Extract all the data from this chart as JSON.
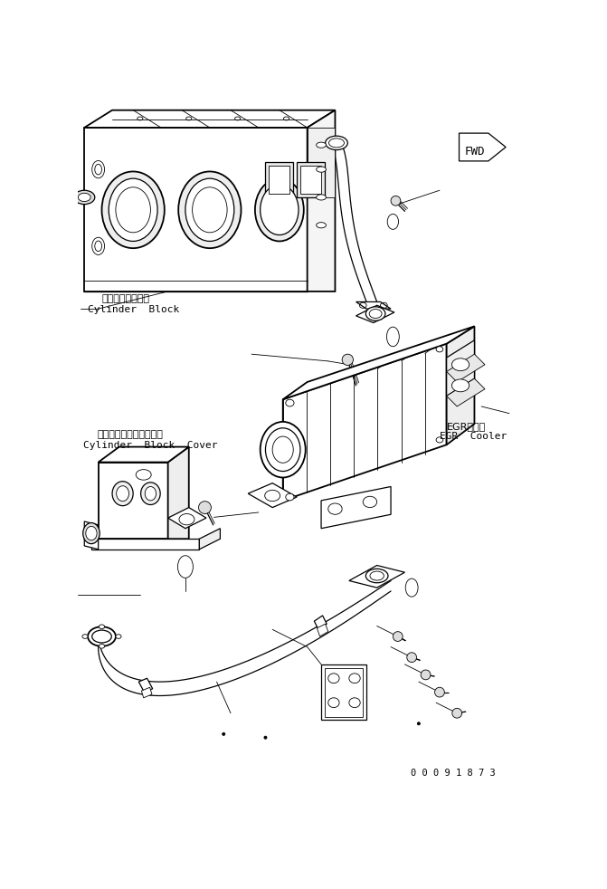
{
  "background_color": "#ffffff",
  "line_color": "#000000",
  "figsize": [
    6.71,
    9.82
  ],
  "dpi": 100,
  "label_cylinder_block_jp": "シリンダブロック",
  "label_cylinder_block_en": "Cylinder  Block",
  "label_cover_jp": "シリンダブロックカバー",
  "label_cover_en": "Cylinder  Block  Cover",
  "label_egr_jp": "EGRクーラ",
  "label_egr_en": "EGR  Cooler",
  "part_number": "0 0 0 9 1 8 7 3"
}
